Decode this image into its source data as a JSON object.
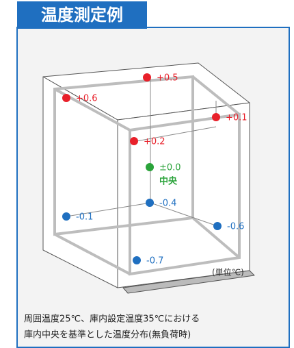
{
  "header": {
    "title": "温度測定例"
  },
  "points": [
    {
      "label": "+0.5",
      "color": "#e8202a"
    },
    {
      "label": "+0.6",
      "color": "#e8202a"
    },
    {
      "label": "+0.1",
      "color": "#e8202a"
    },
    {
      "label": "+0.2",
      "color": "#e8202a"
    },
    {
      "label": "±0.0",
      "sublabel": "中央",
      "color": "#2aa33a"
    },
    {
      "label": "-0.4",
      "color": "#1f6fc0"
    },
    {
      "label": "-0.1",
      "color": "#1f6fc0"
    },
    {
      "label": "-0.6",
      "color": "#1f6fc0"
    },
    {
      "label": "-0.7",
      "color": "#1f6fc0"
    }
  ],
  "unit": "(単位℃)",
  "caption": [
    "周囲温度25℃、庫内設定温度35℃における",
    "庫内中央を基準とした温度分布(無負荷時)"
  ]
}
